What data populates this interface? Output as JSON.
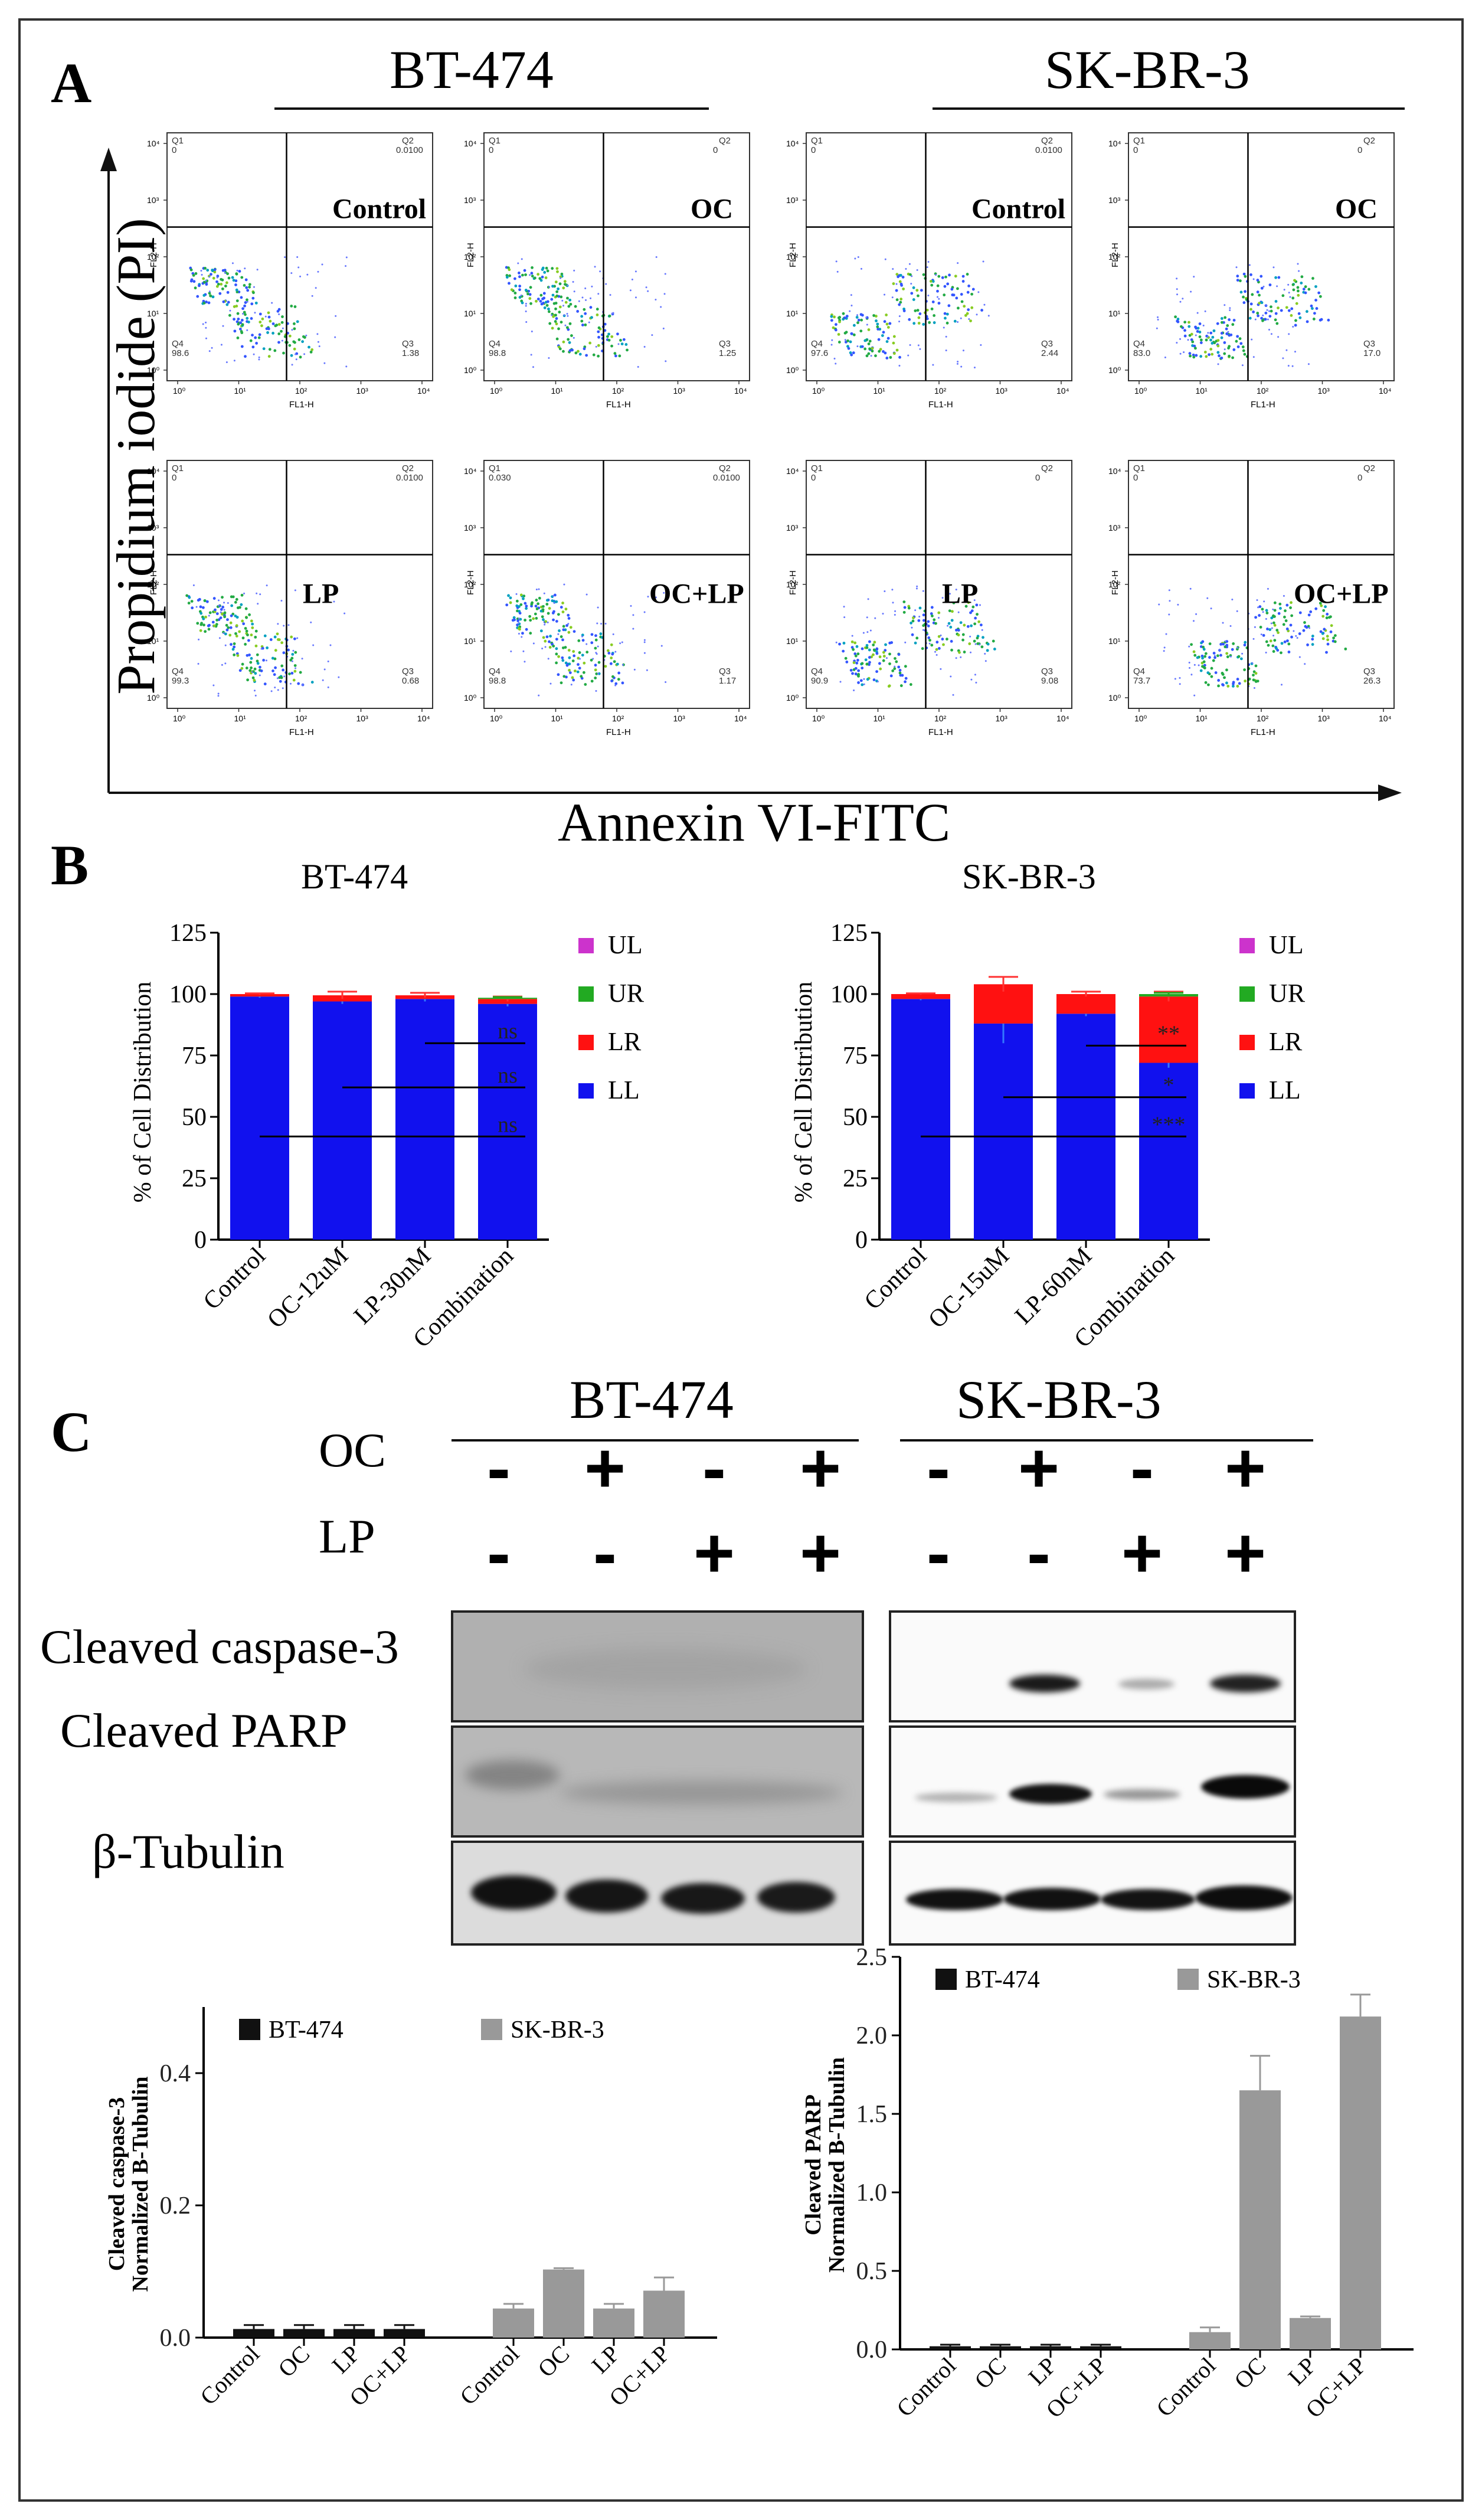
{
  "panel_a": {
    "letter": "A",
    "cell_lines": [
      "BT-474",
      "SK-BR-3"
    ],
    "y_axis_title": "Propidium iodide (PI)",
    "x_axis_title": "Annexin VI-FITC",
    "plot_x_label": "FL1-H",
    "plot_y_label": "FL2-H",
    "tick_labels": [
      "10⁰",
      "10¹",
      "10²",
      "10³",
      "10⁴"
    ],
    "plots": [
      {
        "cell_line": "BT-474",
        "treatment": "Control",
        "q1": "0",
        "q2": "0.0100",
        "q3": "1.38",
        "q4": "98.6"
      },
      {
        "cell_line": "BT-474",
        "treatment": "OC",
        "q1": "0",
        "q2": "0",
        "q3": "1.25",
        "q4": "98.8"
      },
      {
        "cell_line": "SK-BR-3",
        "treatment": "Control",
        "q1": "0",
        "q2": "0.0100",
        "q3": "2.44",
        "q4": "97.6"
      },
      {
        "cell_line": "SK-BR-3",
        "treatment": "OC",
        "q1": "0",
        "q2": "0",
        "q3": "17.0",
        "q4": "83.0"
      },
      {
        "cell_line": "BT-474",
        "treatment": "LP",
        "q1": "0",
        "q2": "0.0100",
        "q3": "0.68",
        "q4": "99.3"
      },
      {
        "cell_line": "BT-474",
        "treatment": "OC+LP",
        "q1": "0.030",
        "q2": "0.0100",
        "q3": "1.17",
        "q4": "98.8"
      },
      {
        "cell_line": "SK-BR-3",
        "treatment": "LP",
        "q1": "0",
        "q2": "0",
        "q3": "9.08",
        "q4": "90.9"
      },
      {
        "cell_line": "SK-BR-3",
        "treatment": "OC+LP",
        "q1": "0",
        "q2": "0",
        "q3": "26.3",
        "q4": "73.7"
      }
    ]
  },
  "panel_b": {
    "letter": "B",
    "legend": [
      {
        "label": "UL",
        "color": "#cc33cc"
      },
      {
        "label": "UR",
        "color": "#22aa22"
      },
      {
        "label": "LR",
        "color": "#ff1111"
      },
      {
        "label": "LL",
        "color": "#1111ee"
      }
    ]
  },
  "panel_c": {
    "letter": "C",
    "cell_lines": [
      "BT-474",
      "SK-BR-3"
    ],
    "oc_label": "OC",
    "lp_label": "LP",
    "oc_signs": [
      "-",
      "+",
      "-",
      "+",
      "-",
      "+",
      "-",
      "+"
    ],
    "lp_signs": [
      "-",
      "-",
      "+",
      "+",
      "-",
      "-",
      "+",
      "+"
    ],
    "blot_rows": [
      "Cleaved caspase-3",
      "Cleaved PARP",
      "β-Tubulin"
    ]
  },
  "chart_data": [
    {
      "type": "bar",
      "stacked": true,
      "title": "BT-474",
      "ylabel": "% of Cell Distribution",
      "xlabel": "",
      "categories": [
        "Control",
        "OC-12uM",
        "LP-30nM",
        "Combination"
      ],
      "ylim": [
        0,
        125
      ],
      "yticks": [
        "0",
        "25",
        "50",
        "75",
        "100",
        "125"
      ],
      "series": [
        {
          "name": "LL",
          "values": [
            99,
            97,
            98,
            96
          ],
          "errors": [
            0.5,
            1,
            1,
            1
          ]
        },
        {
          "name": "LR",
          "values": [
            1,
            2.5,
            1.5,
            2
          ],
          "errors": [
            0.3,
            1.5,
            1,
            1
          ]
        },
        {
          "name": "UR",
          "values": [
            0,
            0,
            0,
            0.5
          ],
          "errors": [
            0,
            0,
            0,
            0.3
          ]
        },
        {
          "name": "UL",
          "values": [
            0,
            0,
            0,
            0
          ],
          "errors": [
            0,
            0,
            0,
            0
          ]
        }
      ],
      "annotations": [
        {
          "from": "Combination",
          "to": "LP-30nM",
          "y": 80,
          "text": "ns"
        },
        {
          "from": "Combination",
          "to": "OC-12uM",
          "y": 62,
          "text": "ns"
        },
        {
          "from": "Combination",
          "to": "Control",
          "y": 42,
          "text": "ns"
        }
      ]
    },
    {
      "type": "bar",
      "stacked": true,
      "title": "SK-BR-3",
      "ylabel": "% of Cell Distribution",
      "xlabel": "",
      "categories": [
        "Control",
        "OC-15uM",
        "LP-60nM",
        "Combination"
      ],
      "ylim": [
        0,
        125
      ],
      "yticks": [
        "0",
        "25",
        "50",
        "75",
        "100",
        "125"
      ],
      "series": [
        {
          "name": "LL",
          "values": [
            98,
            88,
            92,
            72
          ],
          "errors": [
            0.5,
            8,
            1,
            2
          ]
        },
        {
          "name": "LR",
          "values": [
            2,
            16,
            8,
            27
          ],
          "errors": [
            0.3,
            3,
            1,
            2
          ]
        },
        {
          "name": "UR",
          "values": [
            0,
            0,
            0,
            1
          ],
          "errors": [
            0,
            0,
            0,
            0.5
          ]
        },
        {
          "name": "UL",
          "values": [
            0,
            0,
            0,
            0
          ],
          "errors": [
            0,
            0,
            0,
            0
          ]
        }
      ],
      "annotations": [
        {
          "from": "Combination",
          "to": "LP-60nM",
          "y": 79,
          "text": "**"
        },
        {
          "from": "Combination",
          "to": "OC-15uM",
          "y": 58,
          "text": "*"
        },
        {
          "from": "Combination",
          "to": "Control",
          "y": 42,
          "text": "***"
        }
      ]
    },
    {
      "type": "bar",
      "title": "",
      "ylabel": "Cleaved caspase-3\nNormalized Β-Tubulin",
      "xlabel": "",
      "categories": [
        "Control",
        "OC",
        "LP",
        "OC+LP",
        "Control",
        "OC",
        "LP",
        "OC+LP"
      ],
      "ylim": [
        0,
        0.5
      ],
      "yticks": [
        "0.0",
        "0.2",
        "0.4"
      ],
      "series": [
        {
          "name": "BT-474",
          "color": "#111111",
          "values": [
            0.013,
            0.013,
            0.013,
            0.013,
            null,
            null,
            null,
            null
          ],
          "errors": [
            0.006,
            0.006,
            0.006,
            0.006,
            null,
            null,
            null,
            null
          ]
        },
        {
          "name": "SK-BR-3",
          "color": "#999999",
          "values": [
            null,
            null,
            null,
            null,
            0.044,
            0.103,
            0.044,
            0.071
          ],
          "errors": [
            null,
            null,
            null,
            null,
            0.007,
            0.002,
            0.007,
            0.02
          ]
        }
      ]
    },
    {
      "type": "bar",
      "title": "",
      "ylabel": "Cleaved PARP\nNormalized Β-Tubulin",
      "xlabel": "",
      "categories": [
        "Control",
        "OC",
        "LP",
        "OC+LP",
        "Control",
        "OC",
        "LP",
        "OC+LP"
      ],
      "ylim": [
        0,
        2.5
      ],
      "yticks": [
        "0.0",
        "0.5",
        "1.0",
        "1.5",
        "2.0",
        "2.5"
      ],
      "series": [
        {
          "name": "BT-474",
          "color": "#111111",
          "values": [
            0.02,
            0.02,
            0.02,
            0.02,
            null,
            null,
            null,
            null
          ],
          "errors": [
            0.01,
            0.01,
            0.01,
            0.01,
            null,
            null,
            null,
            null
          ]
        },
        {
          "name": "SK-BR-3",
          "color": "#999999",
          "values": [
            null,
            null,
            null,
            null,
            0.11,
            1.65,
            0.2,
            2.12
          ],
          "errors": [
            null,
            null,
            null,
            null,
            0.03,
            0.22,
            0.01,
            0.14
          ]
        }
      ]
    }
  ]
}
